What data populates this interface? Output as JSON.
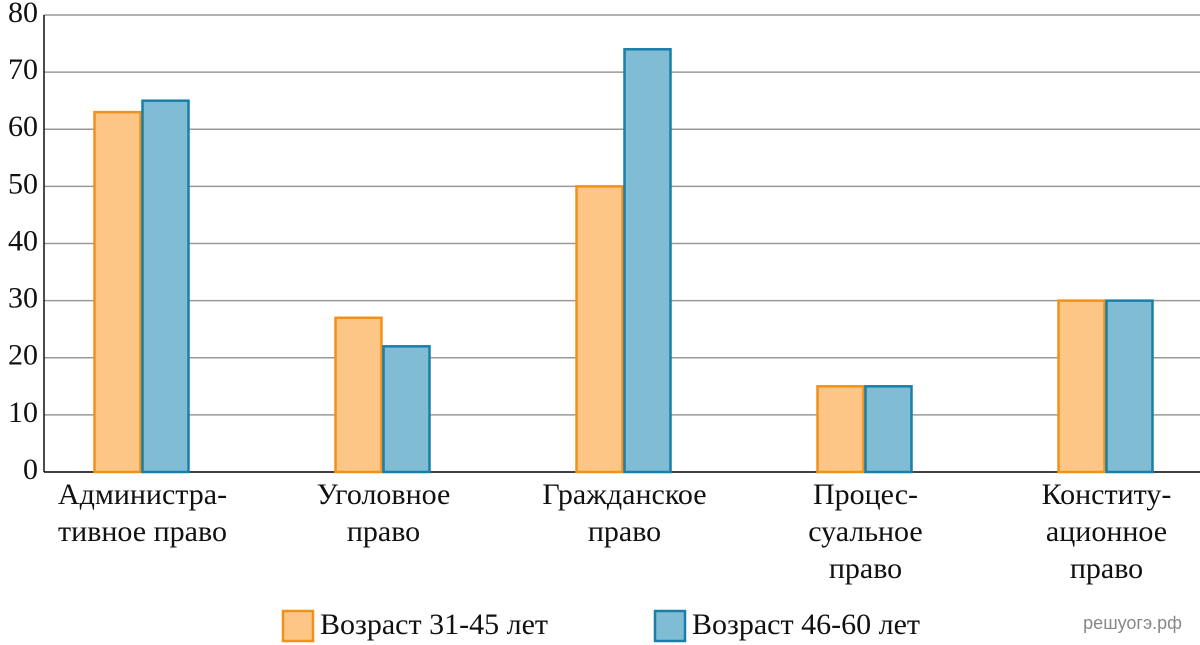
{
  "chart_data": {
    "type": "bar",
    "categories": [
      [
        "Администра-",
        "тивное право"
      ],
      [
        "Уголовное",
        "право"
      ],
      [
        "Гражданское",
        "право"
      ],
      [
        "Процес-",
        "суальное",
        "право"
      ],
      [
        "Конститу-",
        "ационное",
        "право"
      ]
    ],
    "series": [
      {
        "name": "Возраст 31-45 лет",
        "color": "#fdc586",
        "stroke": "#f0921a",
        "values": [
          63,
          27,
          50,
          15,
          30
        ]
      },
      {
        "name": "Возраст 46-60 лет",
        "color": "#80bdd4",
        "stroke": "#1a7fa8",
        "values": [
          65,
          22,
          74,
          15,
          30
        ]
      }
    ],
    "ylim": [
      0,
      80
    ],
    "yticks": [
      0,
      10,
      20,
      30,
      40,
      50,
      60,
      70,
      80
    ],
    "grid": true
  },
  "watermark": "решуогэ.рф"
}
